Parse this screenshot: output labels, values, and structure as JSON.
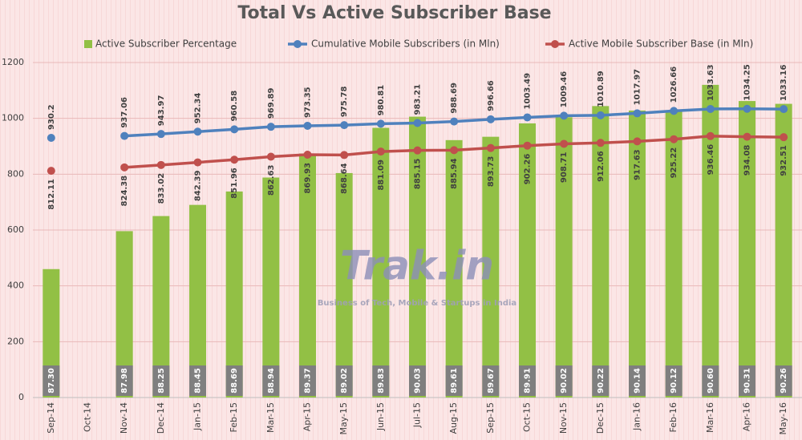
{
  "chart_data": {
    "type": "bar",
    "title": "Total Vs Active Subscriber Base",
    "annotations": [
      "Trak.in",
      "Business of Tech, Mobile & Startups in India"
    ],
    "categories": [
      "Sep-14",
      "Oct-14",
      "Nov-14",
      "Dec-14",
      "Jan-15",
      "Feb-15",
      "Mar-15",
      "Apr-15",
      "May-15",
      "Jun-15",
      "Jul-15",
      "Aug-15",
      "Sep-15",
      "Oct-15",
      "Nov-15",
      "Dec-15",
      "Jan-16",
      "Feb-16",
      "Mar-16",
      "Apr-16",
      "May-16"
    ],
    "ylim": [
      0,
      1200
    ],
    "yticks": [
      0,
      200,
      400,
      600,
      800,
      1000,
      1200
    ],
    "y2lim": [
      85,
      91
    ],
    "grid": true,
    "series": [
      {
        "name": "Active Subscriber Percentage",
        "type": "bar",
        "axis": "y2",
        "color": "#92c045",
        "values": [
          87.3,
          null,
          87.98,
          88.25,
          88.45,
          88.69,
          88.94,
          89.37,
          89.02,
          89.83,
          90.03,
          89.61,
          89.67,
          89.91,
          90.02,
          90.22,
          90.14,
          90.12,
          90.6,
          90.31,
          90.26
        ],
        "value_labels": [
          "87.30",
          null,
          "87.98",
          "88.25",
          "88.45",
          "88.69",
          "88.94",
          "89.37",
          "89.02",
          "89.83",
          "90.03",
          "89.61",
          "89.67",
          "89.91",
          "90.02",
          "90.22",
          "90.14",
          "90.12",
          "90.60",
          "90.31",
          "90.26"
        ]
      },
      {
        "name": "Cumulative Mobile Subscribers (in Mln)",
        "type": "line",
        "color": "#4f81bd",
        "values": [
          930.2,
          null,
          937.06,
          943.97,
          952.34,
          960.58,
          969.89,
          973.35,
          975.78,
          980.81,
          983.21,
          988.69,
          996.66,
          1003.49,
          1009.46,
          1010.89,
          1017.97,
          1026.66,
          1033.63,
          1034.25,
          1033.16
        ]
      },
      {
        "name": "Active Mobile Subscriber Base (in Mln)",
        "type": "line",
        "color": "#c0504d",
        "values": [
          812.11,
          null,
          824.38,
          833.02,
          842.39,
          851.96,
          862.63,
          869.93,
          868.64,
          881.09,
          885.15,
          885.94,
          893.73,
          902.26,
          908.71,
          912.06,
          917.63,
          925.22,
          936.46,
          934.08,
          932.51
        ]
      }
    ]
  }
}
